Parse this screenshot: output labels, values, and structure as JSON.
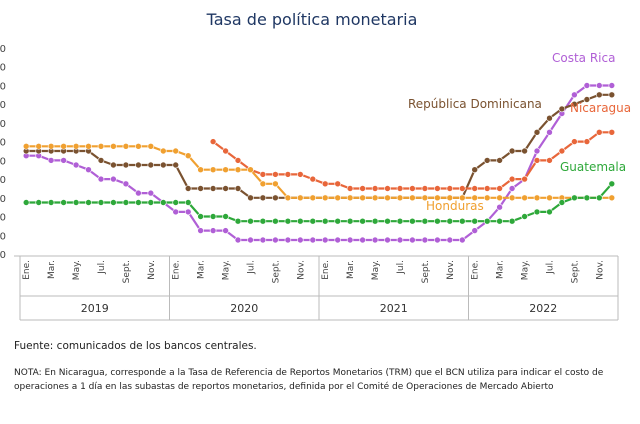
{
  "chart_data": {
    "type": "line",
    "title": "Tasa de política monetaria",
    "y_ticks": [
      "0",
      "0",
      "0",
      "0",
      "0",
      "0",
      "0",
      "0",
      "0",
      "0",
      "0",
      "0"
    ],
    "ylim": [
      0,
      11
    ],
    "month_labels": [
      "Ene.",
      "Mar.",
      "May.",
      "Jul.",
      "Sept.",
      "Nov."
    ],
    "years": [
      "2019",
      "2020",
      "2021",
      "2022"
    ],
    "series": [
      {
        "name": "Costa Rica",
        "color": "#b05fd6",
        "values": [
          5.25,
          5.25,
          5.0,
          5.0,
          4.75,
          4.5,
          4.0,
          4.0,
          3.75,
          3.25,
          3.25,
          2.75,
          2.25,
          2.25,
          1.25,
          1.25,
          1.25,
          0.75,
          0.75,
          0.75,
          0.75,
          0.75,
          0.75,
          0.75,
          0.75,
          0.75,
          0.75,
          0.75,
          0.75,
          0.75,
          0.75,
          0.75,
          0.75,
          0.75,
          0.75,
          0.75,
          1.25,
          1.75,
          2.5,
          3.5,
          4.0,
          5.5,
          6.5,
          7.5,
          8.5,
          9.0,
          9.0,
          9.0
        ]
      },
      {
        "name": "República Dominicana",
        "color": "#7a5230",
        "values": [
          5.5,
          5.5,
          5.5,
          5.5,
          5.5,
          5.5,
          5.0,
          4.75,
          4.75,
          4.75,
          4.75,
          4.75,
          4.75,
          3.5,
          3.5,
          3.5,
          3.5,
          3.5,
          3.0,
          3.0,
          3.0,
          3.0,
          3.0,
          3.0,
          3.0,
          3.0,
          3.0,
          3.0,
          3.0,
          3.0,
          3.0,
          3.0,
          3.0,
          3.0,
          3.0,
          3.0,
          4.5,
          5.0,
          5.0,
          5.5,
          5.5,
          6.5,
          7.25,
          7.75,
          8.0,
          8.25,
          8.5,
          8.5
        ]
      },
      {
        "name": "Nicaragua",
        "color": "#e8663a",
        "values": [
          null,
          null,
          null,
          null,
          null,
          null,
          null,
          null,
          null,
          null,
          null,
          null,
          null,
          null,
          null,
          6.0,
          5.5,
          5.0,
          4.5,
          4.25,
          4.25,
          4.25,
          4.25,
          4.0,
          3.75,
          3.75,
          3.5,
          3.5,
          3.5,
          3.5,
          3.5,
          3.5,
          3.5,
          3.5,
          3.5,
          3.5,
          3.5,
          3.5,
          3.5,
          4.0,
          4.0,
          5.0,
          5.0,
          5.5,
          6.0,
          6.0,
          6.5,
          6.5
        ]
      },
      {
        "name": "Honduras",
        "color": "#f0a030",
        "values": [
          5.75,
          5.75,
          5.75,
          5.75,
          5.75,
          5.75,
          5.75,
          5.75,
          5.75,
          5.75,
          5.75,
          5.5,
          5.5,
          5.25,
          4.5,
          4.5,
          4.5,
          4.5,
          4.5,
          3.75,
          3.75,
          3.0,
          3.0,
          3.0,
          3.0,
          3.0,
          3.0,
          3.0,
          3.0,
          3.0,
          3.0,
          3.0,
          3.0,
          3.0,
          3.0,
          3.0,
          3.0,
          3.0,
          3.0,
          3.0,
          3.0,
          3.0,
          3.0,
          3.0,
          3.0,
          3.0,
          3.0,
          3.0
        ]
      },
      {
        "name": "Guatemala",
        "color": "#2ea83a",
        "values": [
          2.75,
          2.75,
          2.75,
          2.75,
          2.75,
          2.75,
          2.75,
          2.75,
          2.75,
          2.75,
          2.75,
          2.75,
          2.75,
          2.75,
          2.0,
          2.0,
          2.0,
          1.75,
          1.75,
          1.75,
          1.75,
          1.75,
          1.75,
          1.75,
          1.75,
          1.75,
          1.75,
          1.75,
          1.75,
          1.75,
          1.75,
          1.75,
          1.75,
          1.75,
          1.75,
          1.75,
          1.75,
          1.75,
          1.75,
          1.75,
          2.0,
          2.25,
          2.25,
          2.75,
          3.0,
          3.0,
          3.0,
          3.75
        ]
      }
    ],
    "legend_placement": "inline-labels",
    "grid": false
  },
  "source": "Fuente: comunicados de los bancos centrales.",
  "note": "NOTA: En Nicaragua, corresponde a la Tasa de Referencia de Reportos Monetarios (TRM) que el BCN utiliza para indicar el costo de operaciones a 1 día en las subastas de reportos monetarios, definida por el Comité de Operaciones de Mercado Abierto"
}
